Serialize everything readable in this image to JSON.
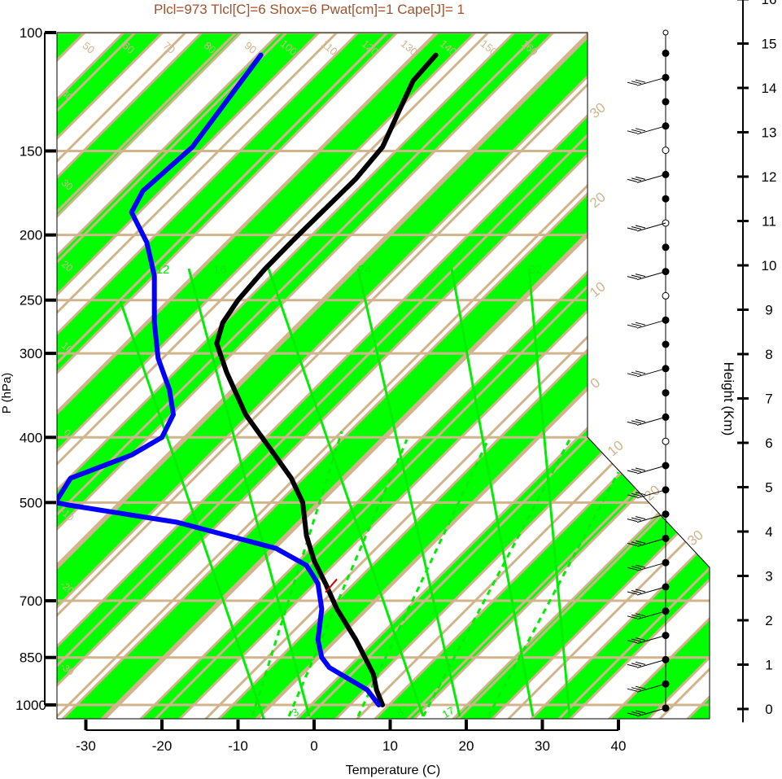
{
  "chart_data": {
    "type": "line",
    "title": "Plcl=973 Tlcl[C]=6 Shox=6 Pwat[cm]=1 Cape[J]= 1",
    "xlabel": "Temperature (C)",
    "ylabel": "P (hPa)",
    "right_label": "Height (Km)",
    "x_ticks": [
      -30,
      -20,
      -10,
      0,
      10,
      20,
      30,
      40
    ],
    "y_ticks": [
      100,
      150,
      200,
      250,
      300,
      400,
      500,
      700,
      850,
      1000
    ],
    "height_ticks": [
      0,
      1,
      2,
      3,
      4,
      5,
      6,
      7,
      8,
      9,
      10,
      11,
      12,
      13,
      14,
      15,
      16
    ],
    "xlim": [
      -34,
      52
    ],
    "ylim": [
      1050,
      100
    ],
    "y_scale": "log",
    "colors": {
      "title": "#a0522d",
      "band": "#00ff00",
      "isoline": "#d2b48c",
      "mixing_ratio": "#00ee00",
      "temperature": "#000000",
      "dewpoint": "#0000ff",
      "parcel": "#cc0000"
    },
    "isotherm_labels": [
      "50",
      "60",
      "70",
      "80",
      "90",
      "100",
      "110",
      "120",
      "130",
      "140",
      "150",
      "160"
    ],
    "left_isotherm_labels": [
      "40",
      "30",
      "20",
      "10",
      "0",
      "-10",
      "-20",
      "-30"
    ],
    "adiabat_labels": [
      "30",
      "20",
      "10",
      "0",
      "10",
      "20",
      "30"
    ],
    "mixing_ratio_top_labels": [
      "12",
      "16",
      "24",
      "32"
    ],
    "mixing_ratio_bottom_labels": [
      "1",
      "3",
      "8",
      "17"
    ],
    "series": [
      {
        "name": "Temperature",
        "points": [
          [
            9,
            1000
          ],
          [
            8.2,
            950
          ],
          [
            7.8,
            900
          ],
          [
            5.5,
            800
          ],
          [
            3,
            720
          ],
          [
            1.5,
            660
          ],
          [
            0,
            610
          ],
          [
            -1,
            560
          ],
          [
            -1.5,
            500
          ],
          [
            -3,
            460
          ],
          [
            -5.5,
            420
          ],
          [
            -9,
            370
          ],
          [
            -11.5,
            320
          ],
          [
            -12.8,
            290
          ],
          [
            -12,
            270
          ],
          [
            -10,
            250
          ],
          [
            -6.5,
            225
          ],
          [
            -3,
            205
          ],
          [
            1,
            185
          ],
          [
            5.5,
            165
          ],
          [
            9,
            148
          ],
          [
            11,
            132
          ],
          [
            13,
            118
          ],
          [
            16,
            108
          ]
        ]
      },
      {
        "name": "Dewpoint",
        "points": [
          [
            8.5,
            1000
          ],
          [
            7,
            950
          ],
          [
            2,
            880
          ],
          [
            1,
            850
          ],
          [
            0.5,
            800
          ],
          [
            1,
            720
          ],
          [
            0.5,
            660
          ],
          [
            -1,
            620
          ],
          [
            -5,
            585
          ],
          [
            -18,
            535
          ],
          [
            -32,
            505
          ],
          [
            -34,
            500
          ],
          [
            -32,
            460
          ],
          [
            -24,
            425
          ],
          [
            -20,
            400
          ],
          [
            -18.5,
            370
          ],
          [
            -19,
            340
          ],
          [
            -20.5,
            305
          ],
          [
            -21,
            270
          ],
          [
            -21,
            230
          ],
          [
            -22,
            205
          ],
          [
            -24,
            185
          ],
          [
            -22.5,
            172
          ],
          [
            -16,
            148
          ],
          [
            -7,
            108
          ]
        ]
      }
    ],
    "wind_barb_levels": 28
  }
}
